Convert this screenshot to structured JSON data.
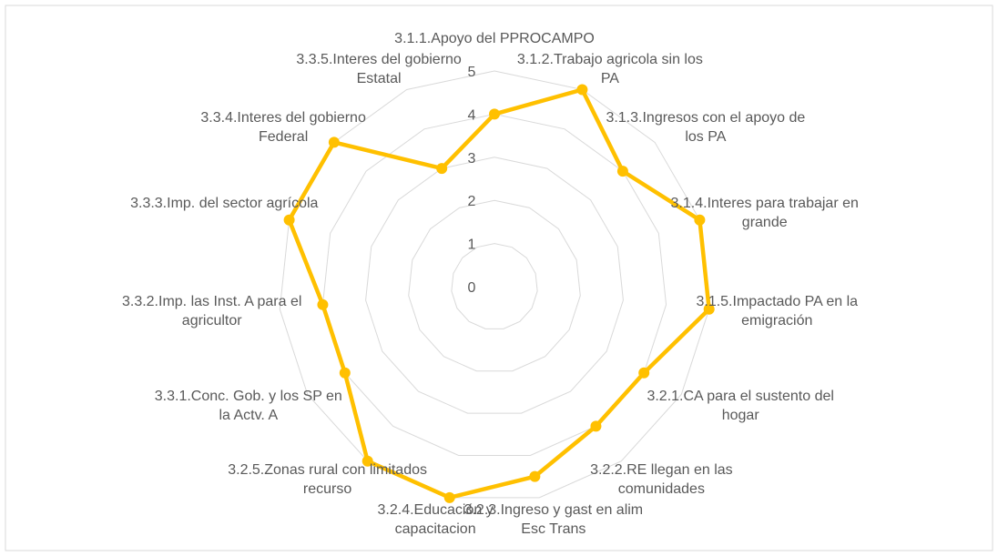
{
  "chart_data": {
    "type": "radar",
    "categories": [
      "3.1.1.Apoyo del PPROCAMPO",
      "3.1.2.Trabajo agricola sin los PA",
      "3.1.3.Ingresos con el apoyo de los PA",
      "3.1.4.Interes para trabajar en grande",
      "3.1.5.Impactado PA en la emigración",
      "3.2.1.CA para el sustento del hogar",
      "3.2.2.RE llegan en las comunidades",
      "3.2.3.Ingreso y gast en alim Esc Trans",
      "3.2.4.Educación y capacitacion",
      "3.2.5.Zonas rural con limitados recurso",
      "3.3.1.Conc. Gob. y los SP en la Actv. A",
      "3.3.2.Imp. las Inst. A para el agricultor",
      "3.3.3.Imp. del sector agrícola",
      "3.3.4.Interes del gobierno Federal",
      "3.3.5.Interes del gobierno Estatal"
    ],
    "values": [
      4,
      5,
      4,
      5,
      5,
      4,
      4,
      4.5,
      5,
      5,
      4,
      4,
      5,
      5,
      3
    ],
    "color": "#ffc000",
    "ylim": [
      0,
      5
    ],
    "yticks": [
      0,
      1,
      2,
      3,
      4,
      5
    ],
    "grid": true
  }
}
